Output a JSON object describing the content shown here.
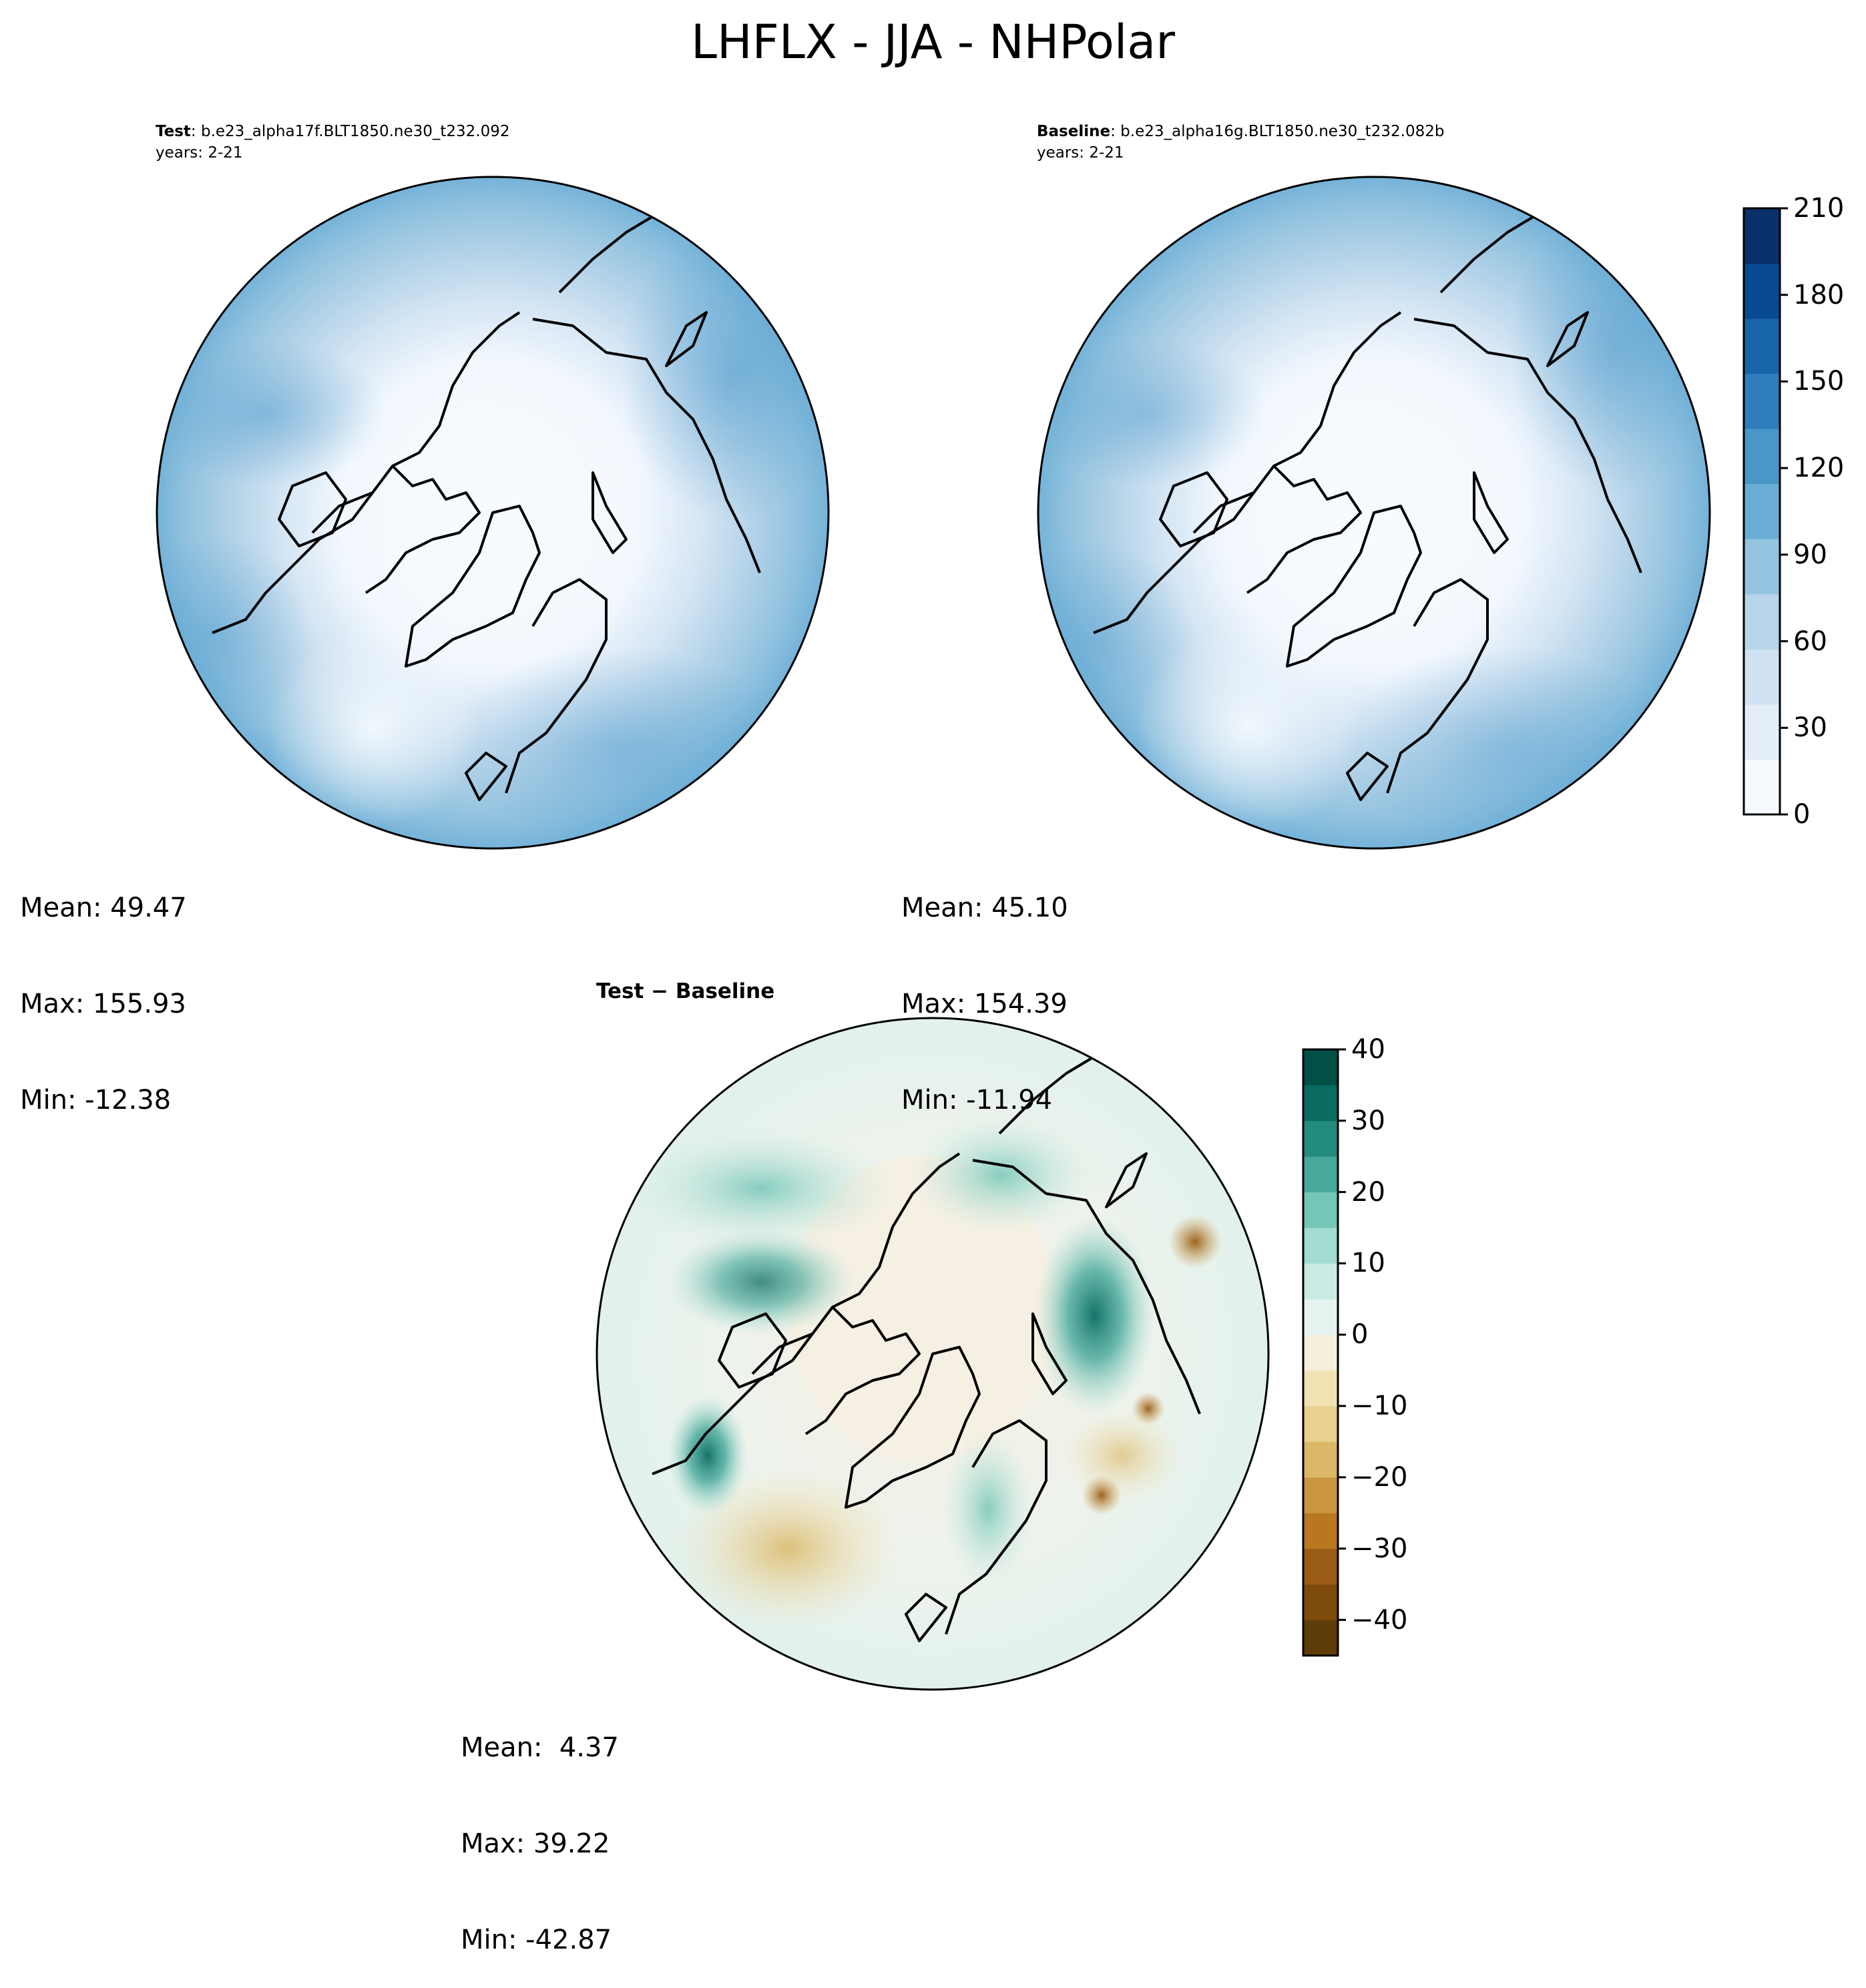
{
  "figure": {
    "title": "LHFLX - JJA - NHPolar"
  },
  "panels": {
    "test": {
      "label": "Test",
      "case": ": b.e23_alpha17f.BLT1850.ne30_t232.092",
      "years": "years: 2-21",
      "stats": {
        "mean": "Mean: 49.47",
        "max": "Max: 155.93",
        "min": "Min: -12.38"
      }
    },
    "baseline": {
      "label": "Baseline",
      "case": ": b.e23_alpha16g.BLT1850.ne30_t232.082b",
      "years": "years: 2-21",
      "stats": {
        "mean": "Mean: 45.10",
        "max": "Max: 154.39",
        "min": "Min: -11.94"
      }
    },
    "difference": {
      "label_a": "Test",
      "label_sep": " − ",
      "label_b": "Baseline",
      "stats": {
        "mean": "Mean:  4.37",
        "max": "Max: 39.22",
        "min": "Min: -42.87"
      }
    }
  },
  "colorbars": {
    "absolute": {
      "colormap": "Blues",
      "range": [
        0,
        210
      ],
      "ticks": [
        "0",
        "30",
        "60",
        "90",
        "120",
        "150",
        "180",
        "210"
      ],
      "levels": 21,
      "colors": [
        "#f7fbff",
        "#e3eef9",
        "#d0e1f2",
        "#b7d4ea",
        "#94c4df",
        "#6aaed6",
        "#4a98c9",
        "#2e7ebc",
        "#1764ab",
        "#084a91",
        "#08306b"
      ]
    },
    "difference": {
      "colormap": "BrBG",
      "range": [
        -45,
        40
      ],
      "ticks": [
        "−40",
        "−30",
        "−20",
        "−10",
        "0",
        "10",
        "20",
        "30",
        "40"
      ],
      "colors_bottom_to_top": [
        "#5e3c08",
        "#7d4b0c",
        "#9a5b14",
        "#b9771f",
        "#ca9541",
        "#dbb767",
        "#e8d08e",
        "#f1e2b4",
        "#f5efdc",
        "#e6f2ef",
        "#c9ebe4",
        "#a2dcd2",
        "#74c6b6",
        "#47a99b",
        "#248b80",
        "#0a6c62",
        "#015046"
      ]
    }
  }
}
